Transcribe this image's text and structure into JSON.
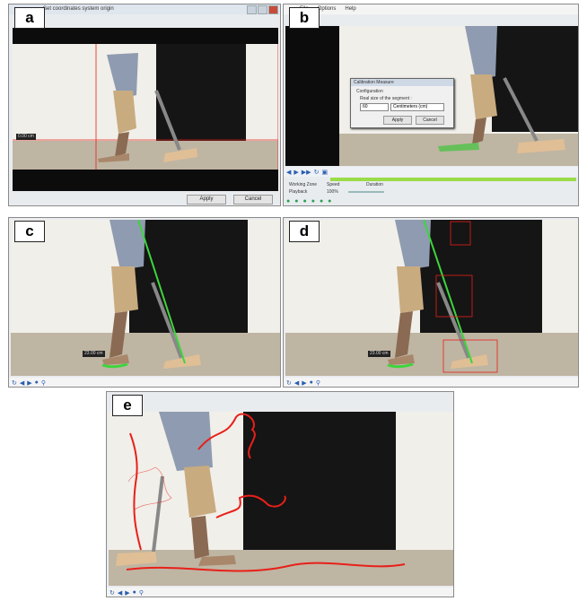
{
  "panels": {
    "a": {
      "label": "a",
      "window_title": "Set coordinates system origin",
      "distance_label": "0.00 cm",
      "apply_button": "Apply",
      "cancel_button": "Cancel"
    },
    "b": {
      "label": "b",
      "menu": [
        "File",
        "Options",
        "Help"
      ],
      "dialog_title": "Calibration Measure",
      "dialog_section": "Configuration",
      "dialog_prompt": "Real size of the segment :",
      "dialog_value": "60",
      "dialog_unit": "Centimeters (cm)",
      "dialog_apply": "Apply",
      "dialog_cancel": "Cancel",
      "working_zone_label": "Working Zone",
      "speed_label": "Speed",
      "duration_label": "Duration",
      "playback_label": "Playback",
      "speed_value": "100%"
    },
    "c": {
      "label": "c",
      "distance_label": "23.00 cm"
    },
    "d": {
      "label": "d",
      "distance_label": "23.00 cm"
    },
    "e": {
      "label": "e"
    }
  },
  "colors": {
    "tracking_line": "#3cd63c",
    "trajectory": "#e8201a",
    "selection_box": "#e8201a"
  }
}
